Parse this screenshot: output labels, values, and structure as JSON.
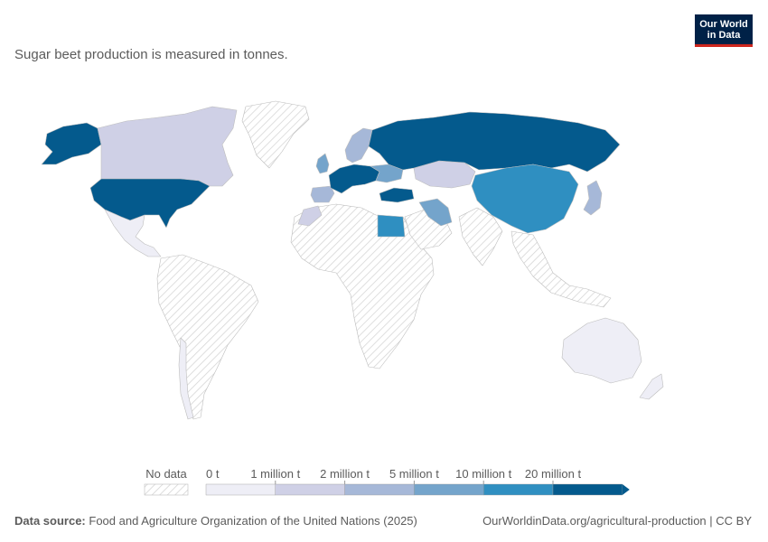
{
  "subtitle": "Sugar beet production is measured in tonnes.",
  "logo": {
    "line1": "Our World",
    "line2": "in Data"
  },
  "legend": {
    "no_data_label": "No data",
    "bins": [
      {
        "label": "0 t",
        "color": "#eeeef6"
      },
      {
        "label": "1 million t",
        "color": "#cfd0e6"
      },
      {
        "label": "2 million t",
        "color": "#a6b8d8"
      },
      {
        "label": "5 million t",
        "color": "#74a4cb"
      },
      {
        "label": "10 million t",
        "color": "#2f8fc1"
      },
      {
        "label": "20 million t",
        "color": "#045a8d"
      }
    ]
  },
  "colors": {
    "nodata_hatch": "#d4d4d4",
    "border": "#bdbdbd"
  },
  "regions": [
    {
      "id": "united-states",
      "bin": 5
    },
    {
      "id": "canada",
      "bin": 1
    },
    {
      "id": "alaska",
      "bin": 5
    },
    {
      "id": "mexico",
      "bin": 0
    },
    {
      "id": "greenland",
      "bin": -1
    },
    {
      "id": "south-america",
      "bin": -1
    },
    {
      "id": "chile",
      "bin": 0
    },
    {
      "id": "africa",
      "bin": -1
    },
    {
      "id": "egypt",
      "bin": 4
    },
    {
      "id": "morocco",
      "bin": 1
    },
    {
      "id": "russia",
      "bin": 5
    },
    {
      "id": "europe-west",
      "bin": 5
    },
    {
      "id": "spain",
      "bin": 2
    },
    {
      "id": "uk",
      "bin": 3
    },
    {
      "id": "scandinavia",
      "bin": 2
    },
    {
      "id": "ukraine",
      "bin": 3
    },
    {
      "id": "turkey",
      "bin": 5
    },
    {
      "id": "iran",
      "bin": 3
    },
    {
      "id": "kazakhstan",
      "bin": 1
    },
    {
      "id": "china",
      "bin": 4
    },
    {
      "id": "japan",
      "bin": 2
    },
    {
      "id": "arabia",
      "bin": -1
    },
    {
      "id": "india",
      "bin": -1
    },
    {
      "id": "southeast-asia",
      "bin": -1
    },
    {
      "id": "australia",
      "bin": 0
    },
    {
      "id": "new-zealand",
      "bin": 0
    }
  ],
  "footer": {
    "source_label": "Data source:",
    "source_text": "Food and Agriculture Organization of the United Nations (2025)",
    "url_text": "OurWorldinData.org/agricultural-production | CC BY"
  }
}
